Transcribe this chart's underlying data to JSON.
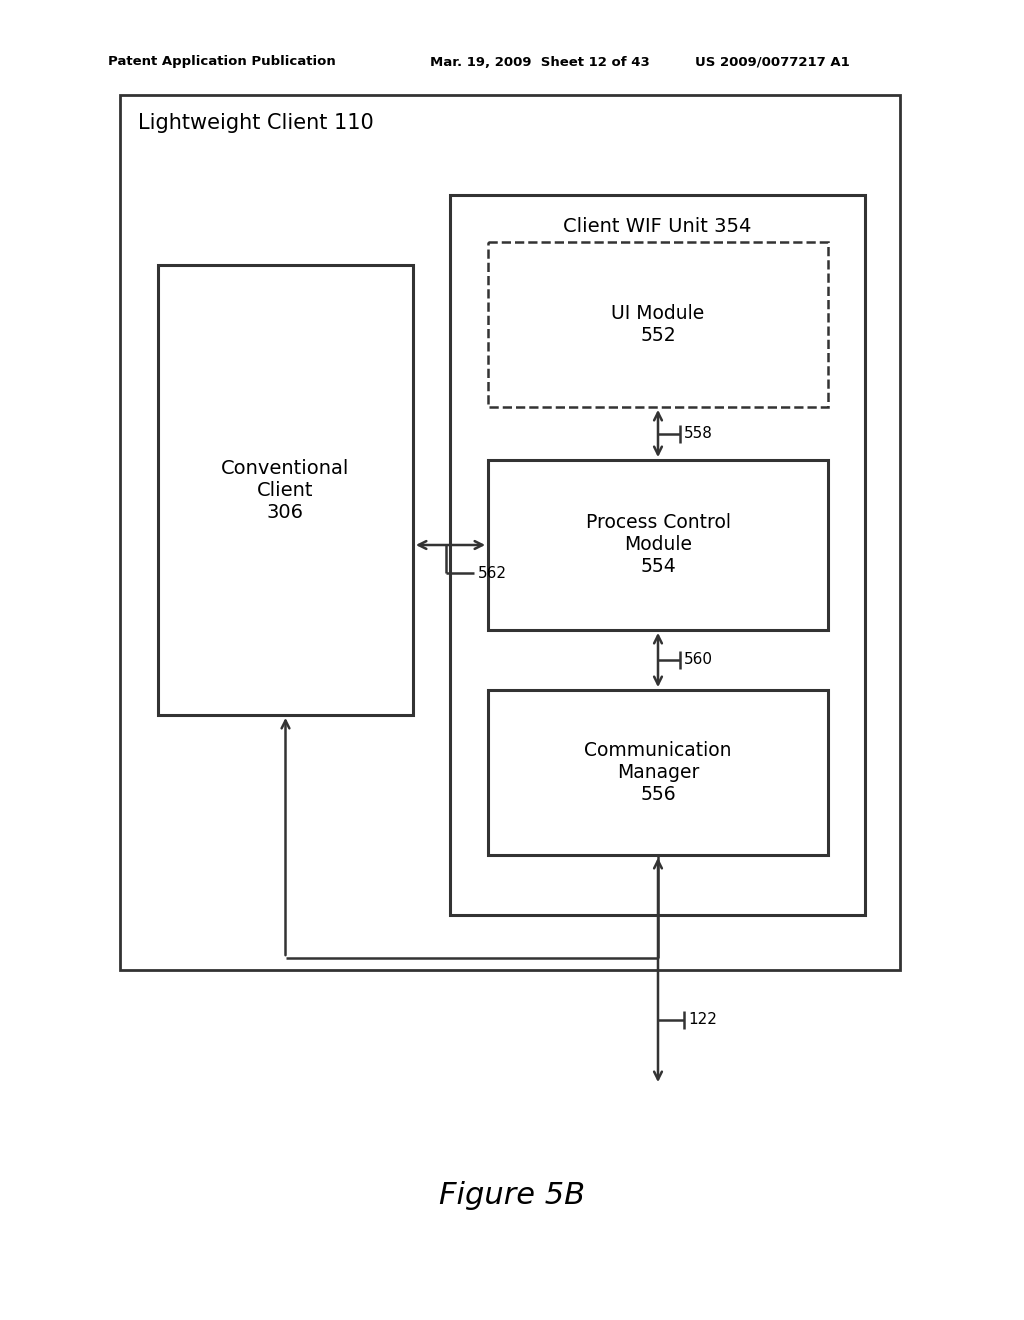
{
  "bg_color": "#ffffff",
  "header_left": "Patent Application Publication",
  "header_mid": "Mar. 19, 2009  Sheet 12 of 43",
  "header_right": "US 2009/0077217 A1",
  "figure_caption": "Figure 5B",
  "outer_box_label": "Lightweight Client 110",
  "wif_box_label": "Client WIF Unit 354",
  "conv_client_label": "Conventional\nClient\n306",
  "ui_module_label": "UI Module\n552",
  "pcm_label": "Process Control\nModule\n554",
  "comm_label": "Communication\nManager\n556",
  "label_558": "558",
  "label_560": "560",
  "label_562": "562",
  "label_122": "122"
}
